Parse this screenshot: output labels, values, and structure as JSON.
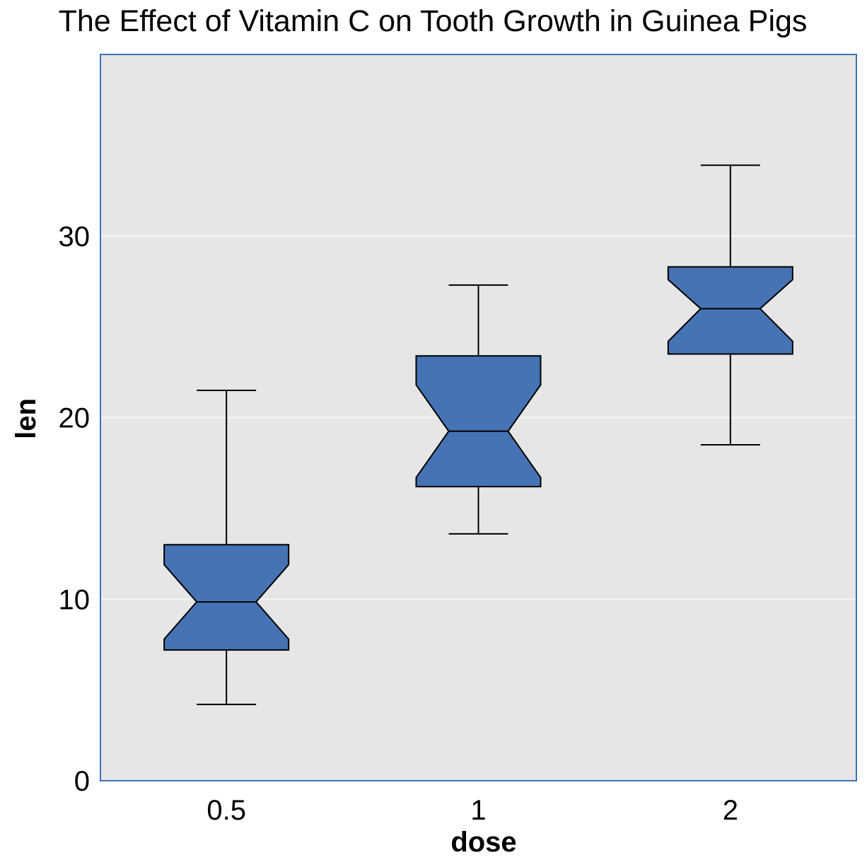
{
  "chart_data": {
    "type": "boxplot",
    "title": "The Effect of Vitamin C on Tooth Growth in Guinea Pigs",
    "xlabel": "dose",
    "ylabel": "len",
    "notched": true,
    "categories": [
      "0.5",
      "1",
      "2"
    ],
    "boxes": [
      {
        "category": "0.5",
        "whisker_low": 4.2,
        "q1": 7.2,
        "median": 9.85,
        "q3": 13.0,
        "whisker_high": 21.5,
        "notch_low": 7.8,
        "notch_high": 11.9
      },
      {
        "category": "1",
        "whisker_low": 13.6,
        "q1": 16.2,
        "median": 19.25,
        "q3": 23.4,
        "whisker_high": 27.3,
        "notch_low": 16.7,
        "notch_high": 21.8
      },
      {
        "category": "2",
        "whisker_low": 18.5,
        "q1": 23.5,
        "median": 26.0,
        "q3": 28.3,
        "whisker_high": 33.9,
        "notch_low": 24.2,
        "notch_high": 27.6
      }
    ],
    "yticks": [
      0,
      10,
      20,
      30
    ],
    "ylim": [
      0,
      40
    ],
    "grid": true,
    "colors": {
      "box_fill": "#4573b4",
      "box_stroke": "#000000",
      "panel_bg": "#e6e6e6",
      "panel_border": "#3d73b6",
      "grid": "#f5f5f5"
    }
  }
}
